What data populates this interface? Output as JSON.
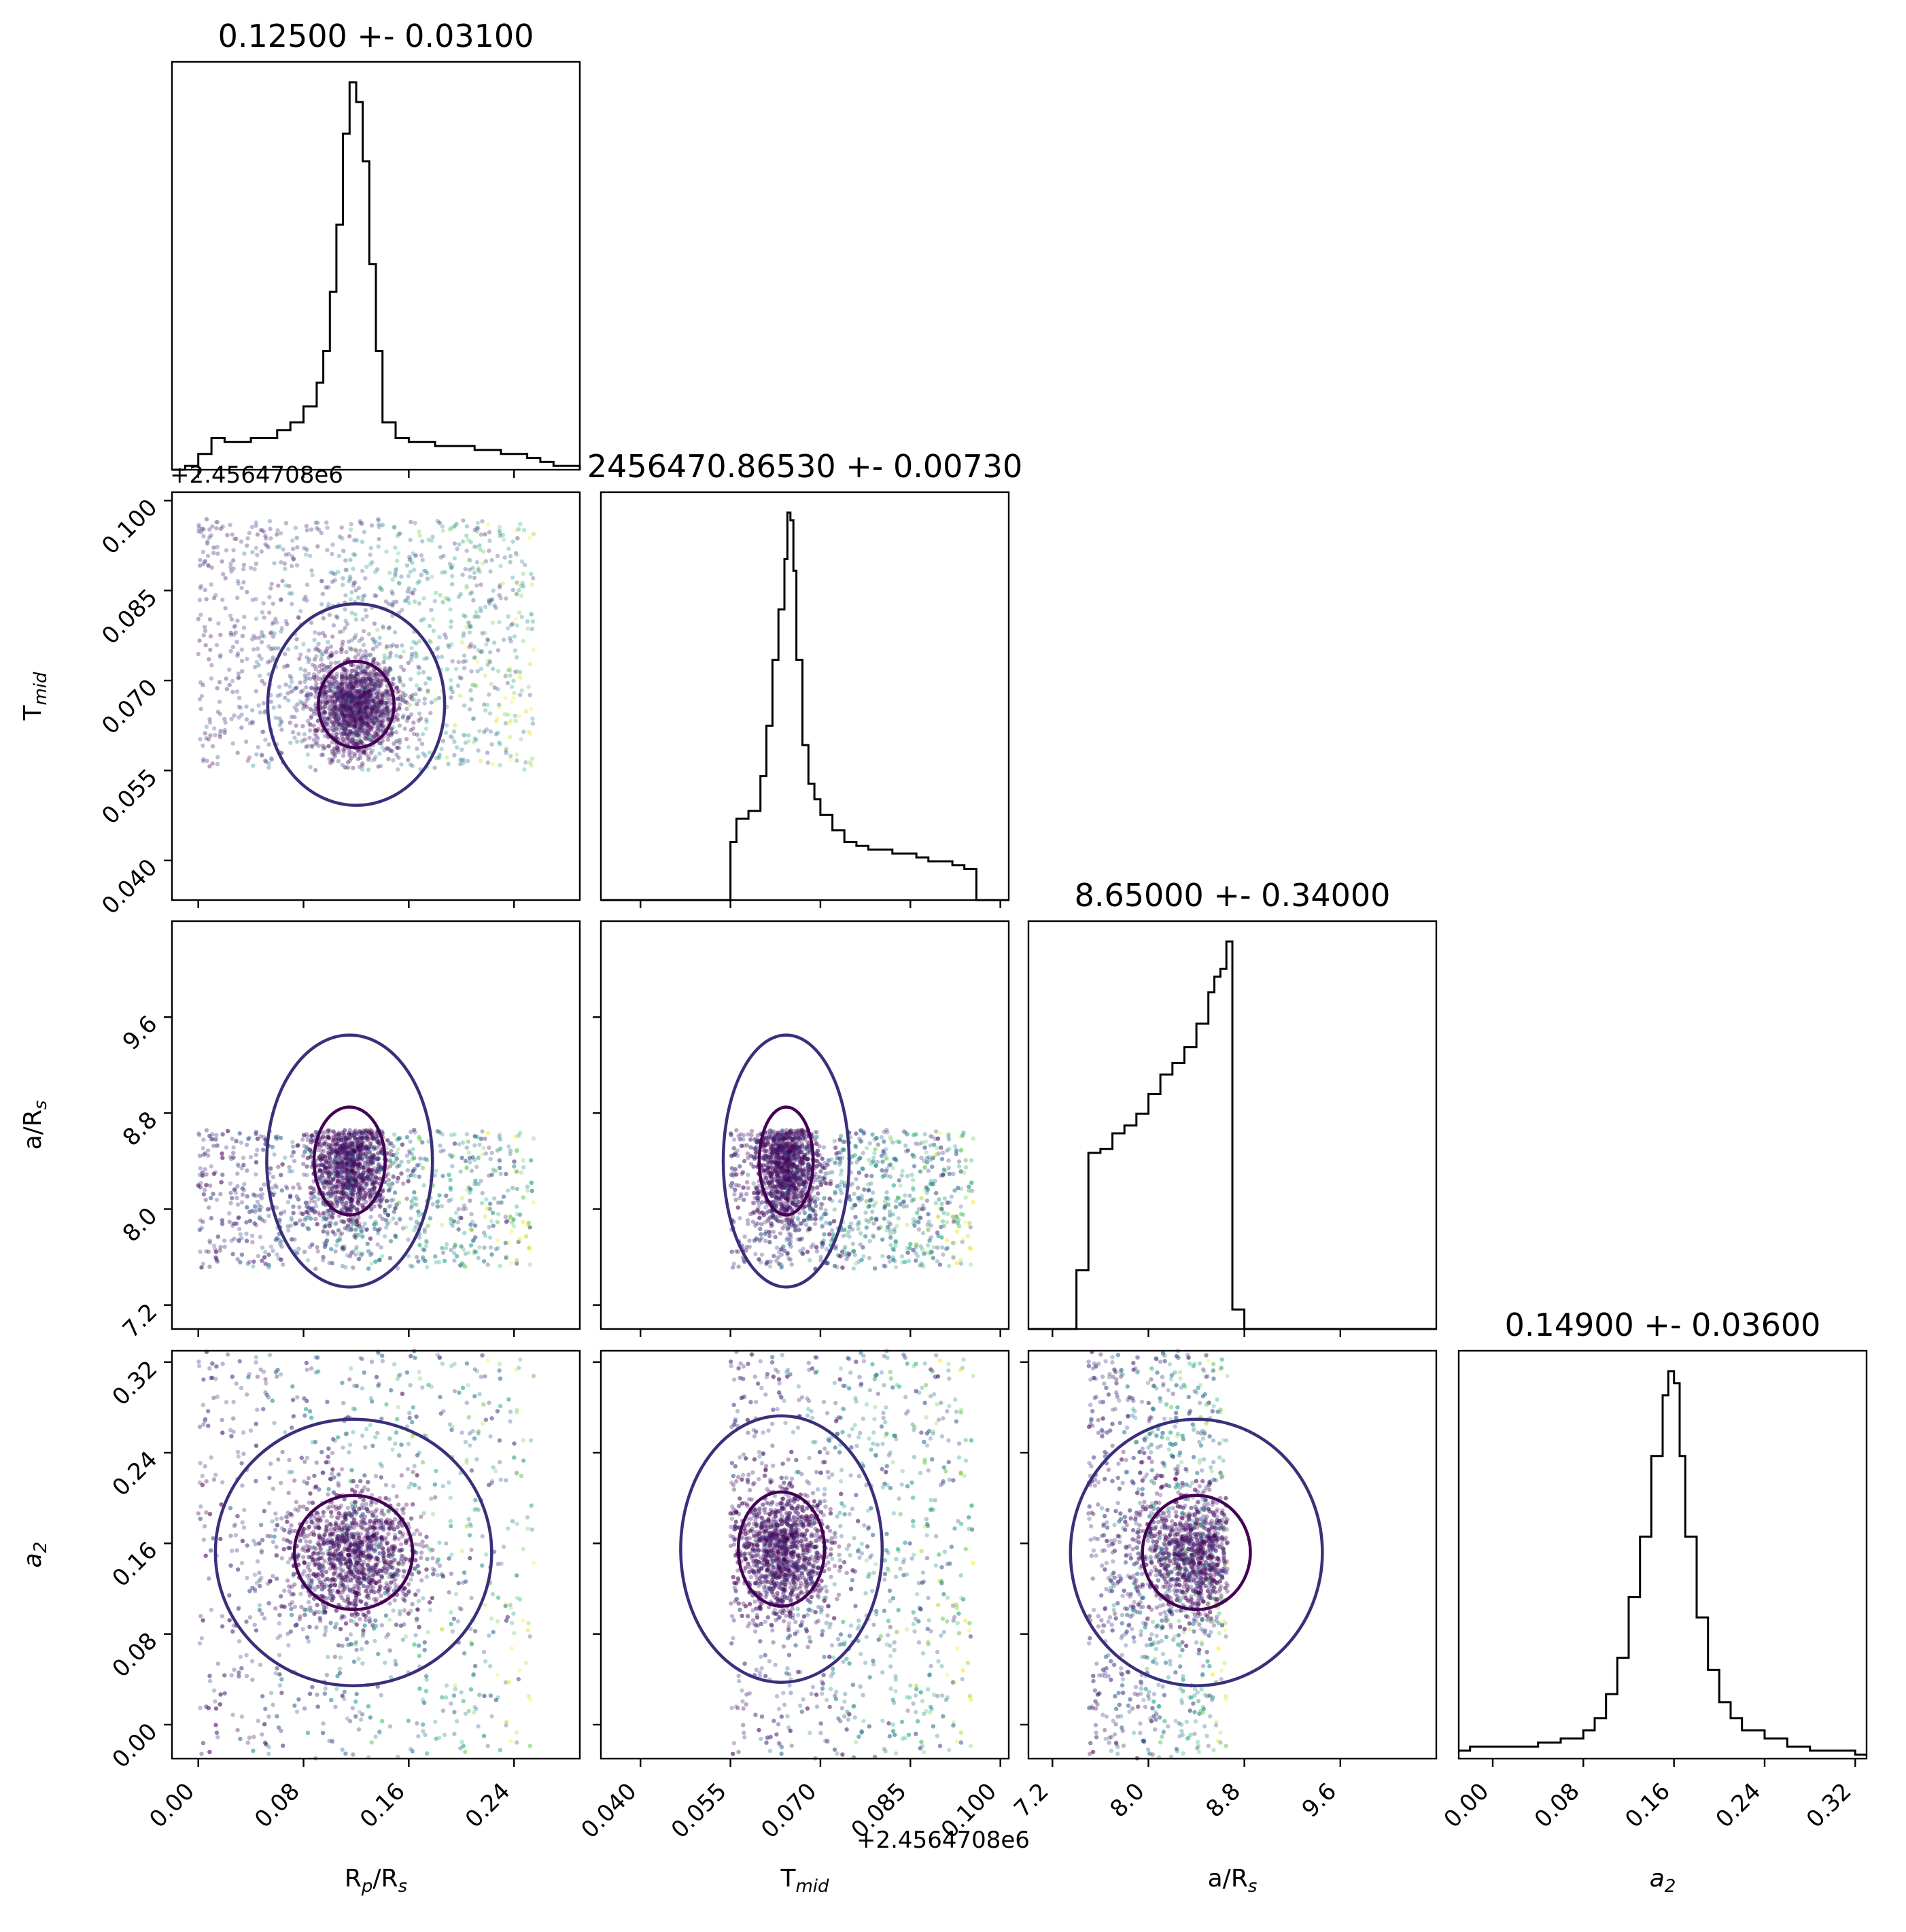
{
  "chart_data": {
    "type": "scatter",
    "subtype": "corner-plot",
    "parameters": [
      {
        "id": "rp",
        "label": "R_p/R_s",
        "label_base": "R",
        "label_sub": "p",
        "label_rest": "/R",
        "label_sub2": "s",
        "title": "0.12500 +- 0.03100",
        "range": [
          -0.02,
          0.29
        ],
        "ticks": [
          0.0,
          0.08,
          0.16,
          0.24
        ],
        "tick_labels": [
          "0.00",
          "0.08",
          "0.16",
          "0.24"
        ]
      },
      {
        "id": "tmid",
        "label": "T_mid",
        "label_base": "T",
        "label_sub": "mid",
        "title": "2456470.86530 +- 0.00730",
        "range": [
          0.0334,
          0.1014
        ],
        "ticks": [
          0.04,
          0.055,
          0.07,
          0.085,
          0.1
        ],
        "tick_labels": [
          "0.040",
          "0.055",
          "0.070",
          "0.085",
          "0.100"
        ],
        "offset_text": "+2.4564708e6"
      },
      {
        "id": "ars",
        "label": "a/R_s",
        "label_base": "a/R",
        "label_sub": "s",
        "title": "8.65000 +- 0.34000",
        "range": [
          7.0,
          10.4
        ],
        "ticks": [
          7.2,
          8.0,
          8.8,
          9.6
        ],
        "tick_labels": [
          "7.2",
          "8.0",
          "8.8",
          "9.6"
        ]
      },
      {
        "id": "a2",
        "label": "a_2",
        "label_base": "a",
        "label_sub": "2",
        "title": "0.14900 +- 0.03600",
        "range": [
          -0.03,
          0.33
        ],
        "ticks": [
          0.0,
          0.08,
          0.16,
          0.24,
          0.32
        ],
        "tick_labels": [
          "0.00",
          "0.08",
          "0.16",
          "0.24",
          "0.32"
        ]
      }
    ],
    "histograms": [
      {
        "param": "rp",
        "x": [
          -0.02,
          -0.01,
          0.0,
          0.01,
          0.02,
          0.03,
          0.04,
          0.05,
          0.06,
          0.07,
          0.08,
          0.09,
          0.095,
          0.1,
          0.105,
          0.11,
          0.115,
          0.12,
          0.125,
          0.13,
          0.135,
          0.14,
          0.15,
          0.16,
          0.17,
          0.18,
          0.19,
          0.2,
          0.21,
          0.22,
          0.23,
          0.24,
          0.25,
          0.26,
          0.27,
          0.28,
          0.29
        ],
        "y": [
          0,
          0.01,
          0.04,
          0.08,
          0.07,
          0.07,
          0.08,
          0.08,
          0.1,
          0.12,
          0.16,
          0.22,
          0.3,
          0.45,
          0.62,
          0.85,
          0.98,
          0.93,
          0.78,
          0.52,
          0.3,
          0.12,
          0.08,
          0.07,
          0.07,
          0.06,
          0.06,
          0.06,
          0.05,
          0.05,
          0.04,
          0.04,
          0.03,
          0.02,
          0.01,
          0.01,
          0
        ]
      },
      {
        "param": "tmid",
        "x": [
          0.0334,
          0.04,
          0.045,
          0.05,
          0.054,
          0.055,
          0.056,
          0.058,
          0.06,
          0.061,
          0.062,
          0.063,
          0.064,
          0.0645,
          0.065,
          0.0655,
          0.066,
          0.067,
          0.068,
          0.069,
          0.07,
          0.072,
          0.074,
          0.076,
          0.078,
          0.08,
          0.082,
          0.084,
          0.086,
          0.088,
          0.09,
          0.092,
          0.094,
          0.095,
          0.096,
          0.1014
        ],
        "y": [
          0,
          0,
          0,
          0,
          0,
          0.15,
          0.21,
          0.23,
          0.32,
          0.45,
          0.62,
          0.75,
          0.88,
          1.0,
          0.98,
          0.85,
          0.62,
          0.4,
          0.3,
          0.26,
          0.22,
          0.18,
          0.15,
          0.14,
          0.13,
          0.13,
          0.12,
          0.12,
          0.11,
          0.1,
          0.1,
          0.09,
          0.08,
          0.08,
          0,
          0
        ]
      },
      {
        "param": "ars",
        "x": [
          7.0,
          7.2,
          7.3,
          7.4,
          7.5,
          7.6,
          7.7,
          7.8,
          7.9,
          8.0,
          8.1,
          8.2,
          8.3,
          8.4,
          8.5,
          8.55,
          8.6,
          8.65,
          8.7,
          8.8,
          9.6,
          10.4
        ],
        "y": [
          0,
          0,
          0,
          0.15,
          0.45,
          0.46,
          0.5,
          0.52,
          0.55,
          0.6,
          0.65,
          0.68,
          0.72,
          0.78,
          0.86,
          0.9,
          0.92,
          0.99,
          0.05,
          0,
          0,
          0
        ]
      },
      {
        "param": "a2",
        "x": [
          -0.03,
          -0.02,
          0.0,
          0.02,
          0.04,
          0.06,
          0.08,
          0.09,
          0.1,
          0.11,
          0.12,
          0.13,
          0.14,
          0.15,
          0.155,
          0.16,
          0.165,
          0.17,
          0.18,
          0.19,
          0.2,
          0.21,
          0.22,
          0.23,
          0.24,
          0.26,
          0.28,
          0.3,
          0.32,
          0.33
        ],
        "y": [
          0.02,
          0.03,
          0.03,
          0.03,
          0.04,
          0.05,
          0.07,
          0.1,
          0.16,
          0.25,
          0.4,
          0.55,
          0.75,
          0.9,
          0.96,
          0.93,
          0.75,
          0.55,
          0.35,
          0.22,
          0.14,
          0.1,
          0.07,
          0.07,
          0.05,
          0.03,
          0.02,
          0.02,
          0.01,
          0.01
        ]
      }
    ],
    "scatter_panels": [
      {
        "x": "rp",
        "y": "tmid",
        "x_range": [
          0.0,
          0.255
        ],
        "y_range": [
          0.055,
          0.097
        ],
        "center": [
          0.12,
          0.066
        ],
        "spread": [
          0.016,
          0.004
        ]
      },
      {
        "x": "rp",
        "y": "ars",
        "x_range": [
          0.0,
          0.255
        ],
        "y_range": [
          7.5,
          8.66
        ],
        "center": [
          0.115,
          8.4
        ],
        "spread": [
          0.015,
          0.25
        ]
      },
      {
        "x": "tmid",
        "y": "ars",
        "x_range": [
          0.055,
          0.0955
        ],
        "y_range": [
          7.5,
          8.66
        ],
        "center": [
          0.0643,
          8.4
        ],
        "spread": [
          0.0025,
          0.25
        ]
      },
      {
        "x": "rp",
        "y": "a2",
        "x_range": [
          0.0,
          0.255
        ],
        "y_range": [
          -0.03,
          0.33
        ],
        "center": [
          0.118,
          0.152
        ],
        "spread": [
          0.025,
          0.028
        ]
      },
      {
        "x": "tmid",
        "y": "a2",
        "x_range": [
          0.055,
          0.0955
        ],
        "y_range": [
          -0.03,
          0.33
        ],
        "center": [
          0.0635,
          0.155
        ],
        "spread": [
          0.004,
          0.028
        ]
      },
      {
        "x": "ars",
        "y": "a2",
        "x_range": [
          7.5,
          8.66
        ],
        "y_range": [
          -0.03,
          0.33
        ],
        "center": [
          8.4,
          0.152
        ],
        "spread": [
          0.25,
          0.028
        ]
      }
    ],
    "colormap": "viridis",
    "point_colors": [
      "#440154",
      "#482878",
      "#3e4989",
      "#31688e",
      "#26828e",
      "#1f9e89",
      "#35b779",
      "#6ece58",
      "#b5de2b",
      "#fde725"
    ],
    "contour_colors": {
      "inner": "#440154",
      "outer": "#3b2f7a"
    }
  }
}
